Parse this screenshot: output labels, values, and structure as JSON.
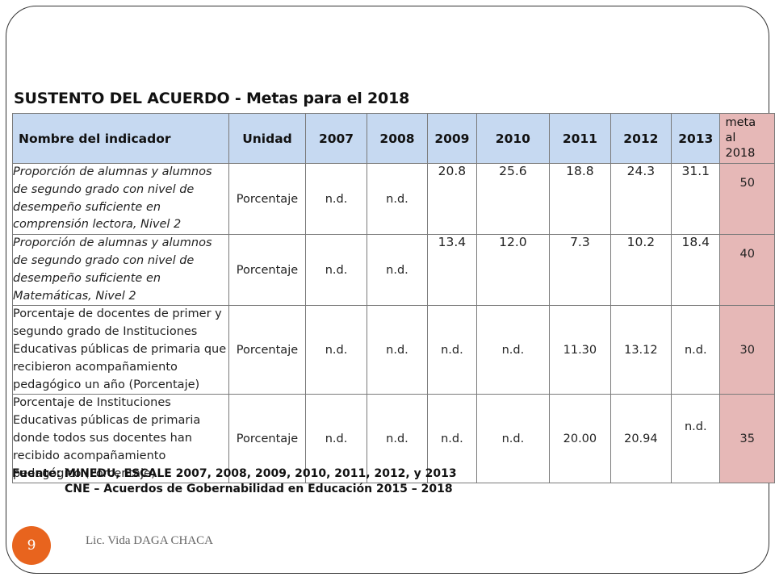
{
  "heading": "SUSTENTO DEL ACUERDO - Metas para el 2018",
  "table": {
    "headers": {
      "name": "Nombre del indicador",
      "unit": "Unidad",
      "years": [
        "2007",
        "2008",
        "2009",
        "2010",
        "2011",
        "2012",
        "2013"
      ],
      "goal_line1": "meta al",
      "goal_line2": "2018"
    },
    "rows": [
      {
        "name": "Proporción de alumnas y alumnos de segundo grado con nivel de desempeño suficiente en comprensión lectora, Nivel 2",
        "unit": "Porcentaje",
        "values": [
          "n.d.",
          "n.d.",
          "20.8",
          "25.6",
          "18.8",
          "24.3",
          "31.1"
        ],
        "goal": "50"
      },
      {
        "name": " Proporción de alumnas y alumnos de segundo grado con nivel de desempeño suficiente en Matemáticas, Nivel 2",
        "unit": "Porcentaje",
        "values": [
          "n.d.",
          "n.d.",
          "13.4",
          "12.0",
          "7.3",
          "10.2",
          "18.4"
        ],
        "goal": "40"
      },
      {
        "name": " Porcentaje de docentes de primer y segundo grado de Instituciones Educativas públicas de primaria que recibieron acompañamiento pedagógico un año (Porcentaje)",
        "unit": "Porcentaje",
        "values": [
          "n.d.",
          "n.d.",
          "n.d.",
          "n.d.",
          "11.30",
          "13.12",
          "n.d."
        ],
        "goal": "30"
      },
      {
        "name": " Porcentaje de Instituciones Educativas públicas de primaria donde todos sus docentes han recibido acompañamiento pedagógico (Porcentaje)",
        "unit": "Porcentaje",
        "values": [
          "n.d.",
          "n.d.",
          "n.d.",
          "n.d.",
          "20.00",
          "20.94",
          "n.d."
        ],
        "goal": "35"
      }
    ]
  },
  "source_line1": "Fuente: MINEDU, ESCALE  2007, 2008, 2009, 2010, 2011, 2012, y 2013",
  "source_line2": "CNE – Acuerdos de Gobernabilidad en Educación 2015 – 2018",
  "footer": {
    "page_number": "9",
    "author": "Lic. Vida DAGA CHACA"
  },
  "colors": {
    "header_blue": "#c6d9f1",
    "goal_pink": "#e6b8b7",
    "badge_orange": "#e8641e"
  }
}
